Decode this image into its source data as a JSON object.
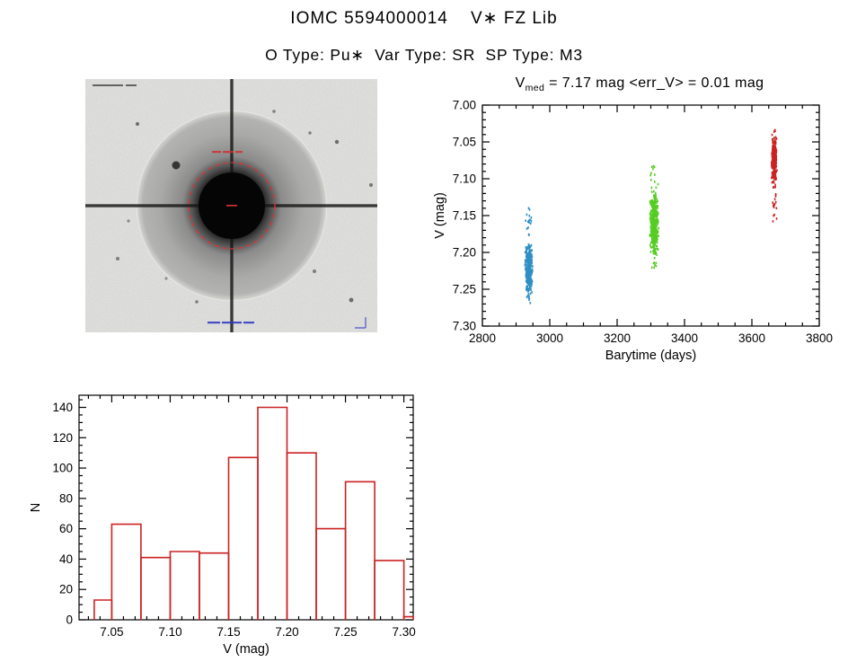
{
  "header": {
    "title": "IOMC 5594000014    V∗ FZ Lib",
    "subtitle": "O Type: Pu∗  Var Type: SR  SP Type: M3"
  },
  "stats": {
    "v_med_mag": 7.17,
    "err_v_mag": 0.01
  },
  "colors": {
    "axis": "#000000",
    "histogram": "#cc2222",
    "cluster_blue": "#2e8fc4",
    "cluster_green": "#55cc22",
    "cluster_red": "#cc2222",
    "aperture": "#e03030"
  },
  "star_image": {
    "name": "finding-chart",
    "aperture_style": "dashed-circle"
  },
  "chart_data": [
    {
      "type": "scatter",
      "title": {
        "var": "V",
        "sub": "med",
        "rest": " = 7.17 mag <err_V> = 0.01 mag"
      },
      "xlabel": "Barytime (days)",
      "ylabel": "V (mag)",
      "xlim": [
        2800,
        3800
      ],
      "ylim": [
        7.0,
        7.3
      ],
      "y_axis_inverted_bright_up": true,
      "xticks": [
        2800,
        3000,
        3200,
        3400,
        3600,
        3800
      ],
      "yticks": [
        7.0,
        7.05,
        7.1,
        7.15,
        7.2,
        7.25,
        7.3
      ],
      "x_minor_step": 50,
      "y_minor_step": 0.01,
      "x_major_step": 200,
      "y_major_step": 0.05,
      "clusters": [
        {
          "name": "epoch-1-blue",
          "color_key": "cluster_blue",
          "x_center": 2938,
          "x_halfwidth": 12,
          "y_min": 7.138,
          "y_max": 7.272,
          "y_core_min": 7.185,
          "y_core_max": 7.262,
          "n": 320
        },
        {
          "name": "epoch-2-green",
          "color_key": "cluster_green",
          "x_center": 3310,
          "x_halfwidth": 14,
          "y_min": 7.082,
          "y_max": 7.222,
          "y_core_min": 7.115,
          "y_core_max": 7.205,
          "n": 400
        },
        {
          "name": "epoch-3-red",
          "color_key": "cluster_red",
          "x_center": 3666,
          "x_halfwidth": 9,
          "y_min": 7.032,
          "y_max": 7.158,
          "y_core_min": 7.038,
          "y_core_max": 7.115,
          "n": 240
        }
      ]
    },
    {
      "type": "bar",
      "xlabel": "V (mag)",
      "ylabel": "N",
      "xlim": [
        7.022,
        7.308
      ],
      "ylim": [
        0,
        148
      ],
      "xticks": [
        7.05,
        7.1,
        7.15,
        7.2,
        7.25,
        7.3
      ],
      "yticks": [
        0,
        20,
        40,
        60,
        80,
        100,
        120,
        140
      ],
      "x_minor_step": 0.01,
      "y_minor_step": 5,
      "x_major_step": 0.05,
      "y_major_step": 20,
      "bin_edges": [
        7.035,
        7.05,
        7.075,
        7.1,
        7.125,
        7.15,
        7.175,
        7.2,
        7.225,
        7.25,
        7.275,
        7.3,
        7.3125
      ],
      "values": [
        13,
        63,
        41,
        45,
        44,
        107,
        140,
        110,
        60,
        91,
        39,
        2
      ]
    }
  ]
}
